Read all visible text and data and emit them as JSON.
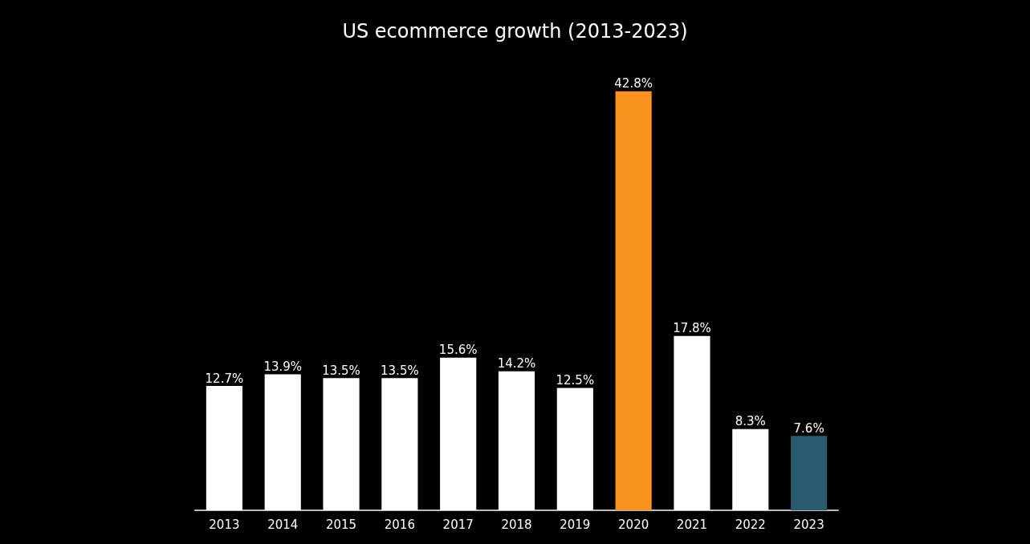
{
  "chart_data": {
    "type": "bar",
    "title": "US ecommerce growth (2013-2023)",
    "categories": [
      "2013",
      "2014",
      "2015",
      "2016",
      "2017",
      "2018",
      "2019",
      "2020",
      "2021",
      "2022",
      "2023"
    ],
    "values": [
      12.7,
      13.9,
      13.5,
      13.5,
      15.6,
      14.2,
      12.5,
      42.8,
      17.8,
      8.3,
      7.6
    ],
    "colors": [
      "#ffffff",
      "#ffffff",
      "#ffffff",
      "#ffffff",
      "#ffffff",
      "#ffffff",
      "#ffffff",
      "#f7931e",
      "#ffffff",
      "#ffffff",
      "#2a5a6e"
    ],
    "value_labels": [
      "12.7%",
      "13.9%",
      "13.5%",
      "13.5%",
      "15.6%",
      "14.2%",
      "12.5%",
      "42.8%",
      "17.8%",
      "8.3%",
      "7.6%"
    ]
  }
}
